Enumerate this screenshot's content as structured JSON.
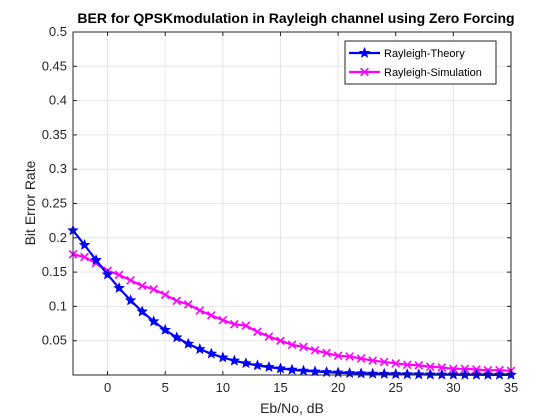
{
  "chart_data": {
    "type": "line",
    "title": "BER for QPSKmodulation in Rayleigh channel using Zero Forcing",
    "xlabel": "Eb/No, dB",
    "ylabel": "Bit Error Rate",
    "xlim": [
      -3,
      35
    ],
    "ylim": [
      0,
      0.5
    ],
    "xticks": [
      "0",
      "5",
      "10",
      "15",
      "20",
      "25",
      "30",
      "35"
    ],
    "xtick_values": [
      0,
      5,
      10,
      15,
      20,
      25,
      30,
      35
    ],
    "yticks": [
      "0.05",
      "0.1",
      "0.15",
      "0.2",
      "0.25",
      "0.3",
      "0.35",
      "0.4",
      "0.45",
      "0.5"
    ],
    "ytick_values": [
      0.05,
      0.1,
      0.15,
      0.2,
      0.25,
      0.3,
      0.35,
      0.4,
      0.45,
      0.5
    ],
    "grid": true,
    "legend_position": "top-right",
    "x": [
      -3,
      -2,
      -1,
      0,
      1,
      2,
      3,
      4,
      5,
      6,
      7,
      8,
      9,
      10,
      11,
      12,
      13,
      14,
      15,
      16,
      17,
      18,
      19,
      20,
      21,
      22,
      23,
      24,
      25,
      26,
      27,
      28,
      29,
      30,
      31,
      32,
      33,
      34,
      35
    ],
    "series": [
      {
        "name": "Rayleigh-Theory",
        "color": "#0000ff",
        "marker": "star",
        "values": [
          0.2108,
          0.1895,
          0.1675,
          0.1464,
          0.1267,
          0.1087,
          0.0925,
          0.0781,
          0.0656,
          0.0547,
          0.0454,
          0.0376,
          0.031,
          0.0255,
          0.0209,
          0.0171,
          0.014,
          0.0115,
          0.0094,
          0.0076,
          0.0062,
          0.0051,
          0.0041,
          0.0034,
          0.0027,
          0.0022,
          0.0018,
          0.0015,
          0.0012,
          0.001,
          0.0008,
          0.0006,
          0.0005,
          0.0004,
          0.0003,
          0.0003,
          0.0002,
          0.0002,
          0.0002
        ]
      },
      {
        "name": "Rayleigh-Simulation",
        "color": "#ff00ff",
        "marker": "x",
        "values": [
          0.176,
          0.172,
          0.163,
          0.152,
          0.146,
          0.138,
          0.13,
          0.125,
          0.117,
          0.108,
          0.103,
          0.094,
          0.087,
          0.08,
          0.074,
          0.072,
          0.063,
          0.056,
          0.05,
          0.044,
          0.041,
          0.036,
          0.032,
          0.028,
          0.027,
          0.024,
          0.021,
          0.019,
          0.017,
          0.015,
          0.014,
          0.012,
          0.011,
          0.009,
          0.009,
          0.008,
          0.007,
          0.007,
          0.006
        ]
      }
    ]
  }
}
